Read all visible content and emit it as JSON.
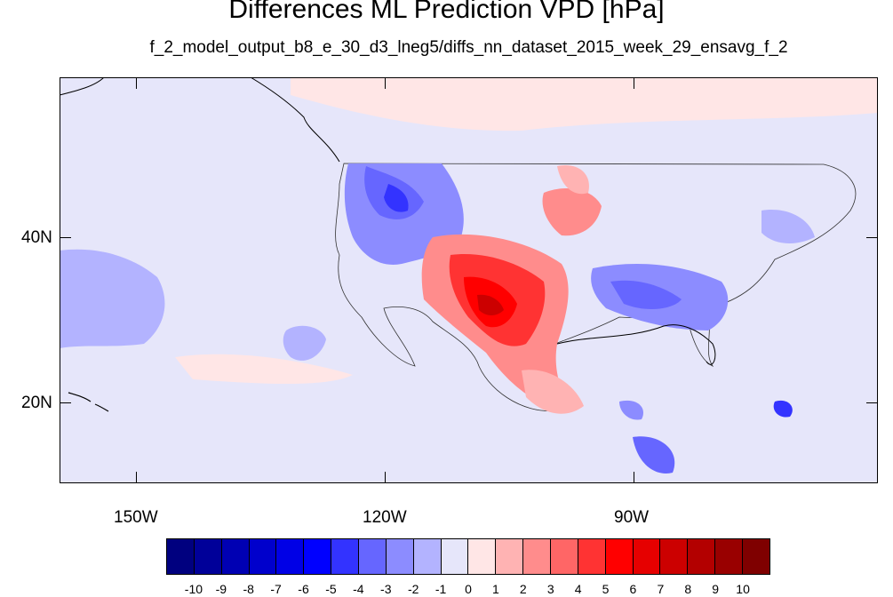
{
  "title": "Differences ML Prediction VPD [hPa]",
  "subtitle": "f_2_model_output_b8_e_30_d3_lneg5/diffs_nn_dataset_2015_week_29_ensavg_f_2",
  "axes": {
    "y_labels": [
      "40N",
      "20N"
    ],
    "x_labels": [
      "150W",
      "120W",
      "90W"
    ]
  },
  "colorbar": {
    "labels": [
      "-10",
      "-9",
      "-8",
      "-7",
      "-6",
      "-5",
      "-4",
      "-3",
      "-2",
      "-1",
      "0",
      "1",
      "2",
      "3",
      "4",
      "5",
      "6",
      "7",
      "8",
      "9",
      "10"
    ],
    "colors": [
      "#00007f",
      "#000099",
      "#0000b3",
      "#0000cc",
      "#0000e6",
      "#0000ff",
      "#3333ff",
      "#6666ff",
      "#8c8cff",
      "#b3b3ff",
      "#e6e6fa",
      "#ffe6e6",
      "#ffb3b3",
      "#ff8c8c",
      "#ff6666",
      "#ff3333",
      "#ff0000",
      "#e60000",
      "#cc0000",
      "#b30000",
      "#990000",
      "#7f0000"
    ]
  },
  "map": {
    "background_color": "#e6e6fa",
    "projection": "cylindrical-equidistant",
    "lon_range": [
      -160,
      -62
    ],
    "lat_range": [
      10,
      59
    ]
  }
}
